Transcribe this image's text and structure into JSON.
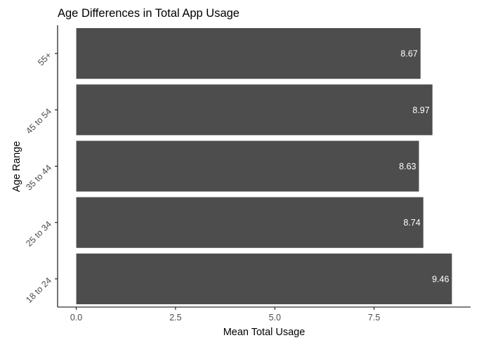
{
  "chart_data": {
    "type": "bar",
    "orientation": "horizontal",
    "title": "Age Differences in Total App Usage",
    "xlabel": "Mean Total Usage",
    "ylabel": "Age Range",
    "categories": [
      "18 to 24",
      "25 to 34",
      "35 to 44",
      "45 to 54",
      "55+"
    ],
    "values": [
      9.46,
      8.74,
      8.63,
      8.97,
      8.67
    ],
    "data_labels": [
      "9.46",
      "8.74",
      "8.63",
      "8.97",
      "8.67"
    ],
    "x_ticks": [
      0,
      2.5,
      5,
      7.5
    ],
    "x_tick_labels": [
      "0.0",
      "2.5",
      "5.0",
      "7.5"
    ],
    "xlim": [
      -0.47,
      9.93
    ],
    "grid": false,
    "legend": "none",
    "colors": {
      "bar": "#4d4d4d",
      "data_label": "#ffffff",
      "axis": "#000000",
      "tick_label": "#4d4d4d",
      "text": "#000000"
    }
  }
}
